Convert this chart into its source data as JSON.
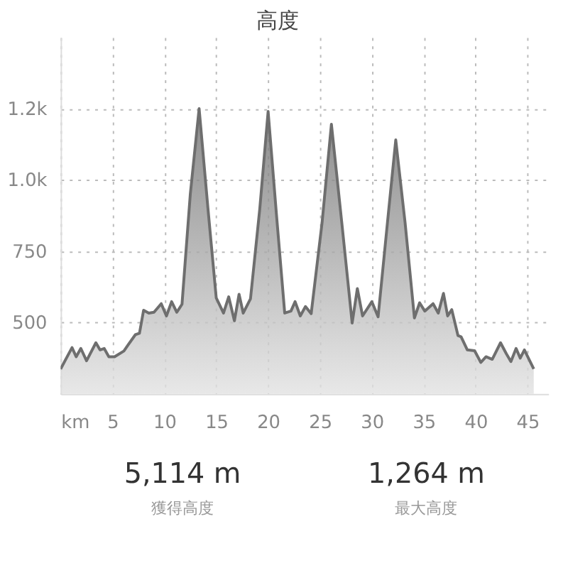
{
  "chart_data": {
    "type": "area",
    "title": "高度",
    "x": [
      0,
      1.1,
      1.5,
      1.95,
      2.5,
      3.4,
      3.8,
      4.2,
      4.65,
      5.2,
      6.1,
      6.5,
      7.2,
      7.6,
      8.0,
      8.5,
      9.0,
      9.7,
      10.2,
      10.7,
      11.2,
      11.7,
      12.5,
      13.35,
      14.2,
      15.0,
      15.7,
      16.2,
      16.75,
      17.2,
      17.6,
      18.3,
      19.2,
      20.0,
      20.8,
      21.6,
      22.2,
      22.6,
      23.1,
      23.6,
      24.15,
      25.2,
      26.1,
      27.1,
      28.1,
      28.6,
      29.1,
      30.0,
      30.6,
      31.5,
      32.3,
      33.2,
      34.1,
      34.6,
      35.1,
      35.9,
      36.4,
      36.9,
      37.3,
      37.7,
      38.3,
      38.6,
      39.2,
      39.9,
      40.5,
      41.0,
      41.6,
      42.4,
      42.95,
      43.4,
      43.9,
      44.3,
      44.7,
      45.6
    ],
    "series": [
      {
        "color": "#6e6e6e",
        "values": [
          337,
          412,
          380,
          409,
          366,
          429,
          404,
          409,
          380,
          380,
          400,
          421,
          457,
          462,
          543,
          533,
          536,
          566,
          523,
          573,
          536,
          564,
          950,
          1250,
          900,
          586,
          533,
          590,
          506,
          599,
          533,
          583,
          900,
          1240,
          880,
          533,
          540,
          573,
          523,
          556,
          531,
          850,
          1195,
          850,
          498,
          619,
          523,
          573,
          520,
          850,
          1140,
          850,
          516,
          569,
          540,
          566,
          533,
          602,
          523,
          545,
          454,
          450,
          404,
          401,
          360,
          380,
          371,
          429,
          391,
          363,
          409,
          375,
          404,
          337
        ]
      }
    ],
    "xlim": [
      0,
      47
    ],
    "xticks": [
      {
        "value": 0,
        "label": "km"
      },
      5,
      10,
      15,
      20,
      25,
      30,
      35,
      40,
      45
    ],
    "ylim": [
      250,
      1500
    ],
    "yticks": [
      500,
      750,
      {
        "value": 1000,
        "label": "1.0k"
      },
      {
        "value": 1250,
        "label": "1.2k"
      }
    ],
    "grid": true,
    "line_style": "solid",
    "annotations": [
      "5,114 m",
      "獲得高度",
      "1,264 m",
      "最大高度"
    ]
  }
}
